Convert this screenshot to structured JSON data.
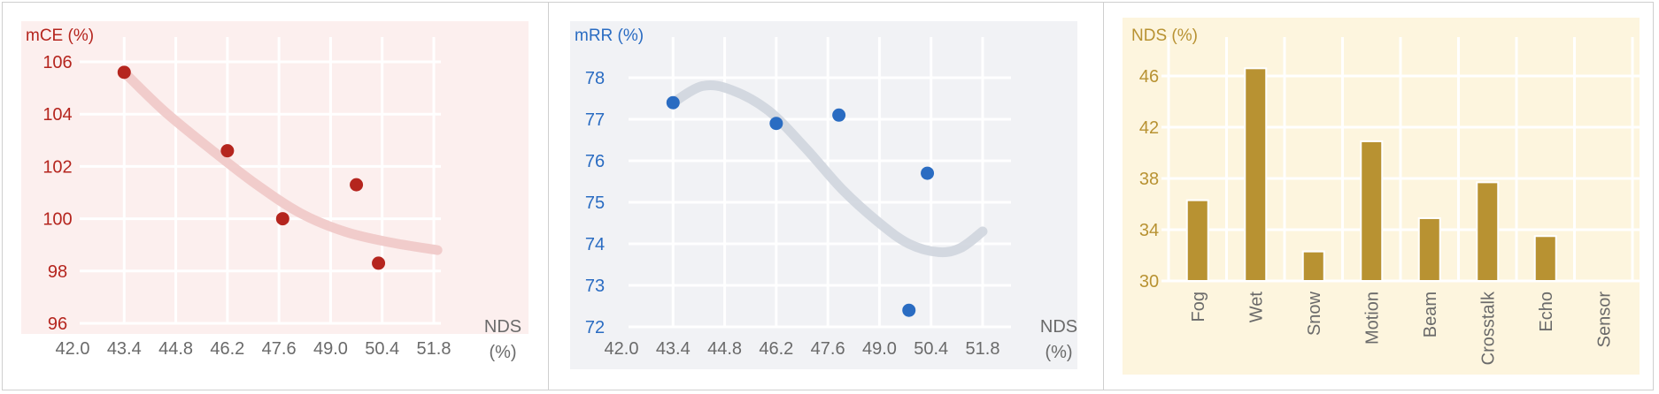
{
  "chart_data": [
    {
      "type": "scatter",
      "title": "mCE (%)",
      "xlabel_line1": "NDS",
      "xlabel_line2": "(%)",
      "xlim": [
        42.0,
        52.6
      ],
      "ylim": [
        96,
        107
      ],
      "xticks": [
        "42.0",
        "43.4",
        "44.8",
        "46.2",
        "47.6",
        "49.0",
        "50.4",
        "51.8"
      ],
      "xtick_values": [
        42.0,
        43.4,
        44.8,
        46.2,
        47.6,
        49.0,
        50.4,
        51.8
      ],
      "yticks": [
        "96",
        "98",
        "100",
        "102",
        "104",
        "106"
      ],
      "ytick_values": [
        96,
        98,
        100,
        102,
        104,
        106
      ],
      "points": [
        {
          "x": 43.4,
          "y": 105.6
        },
        {
          "x": 46.2,
          "y": 102.6
        },
        {
          "x": 47.7,
          "y": 100.0
        },
        {
          "x": 49.7,
          "y": 101.3
        },
        {
          "x": 50.3,
          "y": 98.3
        }
      ],
      "trend": [
        [
          43.4,
          105.6
        ],
        [
          44.5,
          104.1
        ],
        [
          45.8,
          102.6
        ],
        [
          47.0,
          101.3
        ],
        [
          48.2,
          100.2
        ],
        [
          49.4,
          99.5
        ],
        [
          50.6,
          99.1
        ],
        [
          51.9,
          98.8
        ]
      ],
      "grid": true,
      "colors": {
        "background": "#fcefee",
        "accent": "#b5251e",
        "point": "#b5251e",
        "trend": "#f0c8c6",
        "tick": "#b5251e",
        "xtick": "#6a6a6a",
        "grid": "#ffffff"
      }
    },
    {
      "type": "scatter",
      "title": "mRR (%)",
      "xlabel_line1": "NDS",
      "xlabel_line2": "(%)",
      "xlim": [
        42.0,
        52.6
      ],
      "ylim": [
        72,
        79
      ],
      "xticks": [
        "42.0",
        "43.4",
        "44.8",
        "46.2",
        "47.6",
        "49.0",
        "50.4",
        "51.8"
      ],
      "xtick_values": [
        42.0,
        43.4,
        44.8,
        46.2,
        47.6,
        49.0,
        50.4,
        51.8
      ],
      "yticks": [
        "72",
        "73",
        "74",
        "75",
        "76",
        "77",
        "78"
      ],
      "ytick_values": [
        72,
        73,
        74,
        75,
        76,
        77,
        78
      ],
      "points": [
        {
          "x": 43.4,
          "y": 77.4
        },
        {
          "x": 46.2,
          "y": 76.9
        },
        {
          "x": 47.9,
          "y": 77.1
        },
        {
          "x": 49.8,
          "y": 72.4
        },
        {
          "x": 50.3,
          "y": 75.7
        }
      ],
      "trend": [
        [
          43.4,
          77.4
        ],
        [
          44.2,
          77.8
        ],
        [
          45.0,
          77.7
        ],
        [
          46.0,
          77.2
        ],
        [
          47.0,
          76.3
        ],
        [
          48.0,
          75.3
        ],
        [
          49.0,
          74.5
        ],
        [
          49.8,
          74.0
        ],
        [
          50.6,
          73.8
        ],
        [
          51.2,
          73.9
        ],
        [
          51.8,
          74.3
        ]
      ],
      "grid": true,
      "colors": {
        "background": "#f1f2f5",
        "accent": "#2a6cc2",
        "point": "#2a6cc2",
        "trend": "#cfd5de",
        "tick": "#2a6cc2",
        "xtick": "#6a6a6a",
        "grid": "#ffffff"
      }
    },
    {
      "type": "bar",
      "title": "NDS (%)",
      "categories": [
        "Fog",
        "Wet",
        "Snow",
        "Motion",
        "Beam",
        "Crosstalk",
        "Echo",
        "Sensor"
      ],
      "values": [
        36.3,
        46.6,
        32.3,
        40.9,
        34.9,
        37.7,
        33.5,
        30.0
      ],
      "ylim": [
        30,
        48
      ],
      "yticks": [
        "30",
        "34",
        "38",
        "42",
        "46"
      ],
      "ytick_values": [
        30,
        34,
        38,
        42,
        46
      ],
      "grid": true,
      "colors": {
        "background": "#fdf5de",
        "bar": "#b89232",
        "tick": "#b89232",
        "xtick": "#6a6a6a",
        "grid": "#ffffff"
      }
    }
  ]
}
